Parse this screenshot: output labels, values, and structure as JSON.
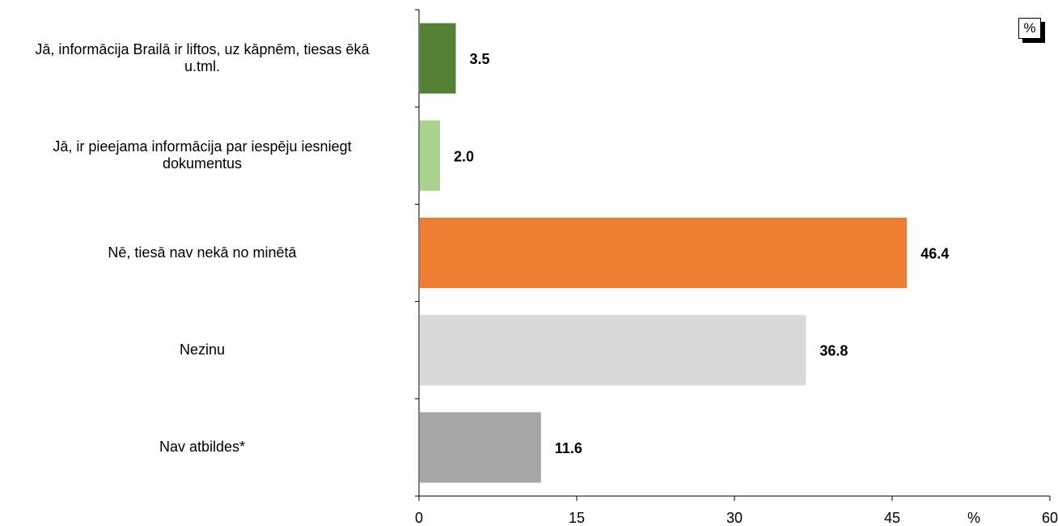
{
  "chart_data": {
    "type": "bar",
    "orientation": "horizontal",
    "categories": [
      "Jā, informācija Brailā ir liftos, uz kāpnēm, tiesas ēkā u.tml.",
      "Jā, ir pieejama informācija par iespēju iesniegt dokumentus",
      "Nē, tiesā nav nekā no minētā",
      "Nezinu",
      "Nav atbildes*"
    ],
    "category_lines": [
      [
        "Jā, informācija Brailā ir liftos, uz kāpnēm, tiesas ēkā",
        "u.tml."
      ],
      [
        "Jā, ir pieejama informācija par iespēju iesniegt",
        "dokumentus"
      ],
      [
        "Nē, tiesā nav nekā no minētā"
      ],
      [
        "Nezinu"
      ],
      [
        "Nav atbildes*"
      ]
    ],
    "values": [
      3.5,
      2.0,
      46.4,
      36.8,
      11.6
    ],
    "value_labels": [
      "3.5",
      "2.0",
      "46.4",
      "36.8",
      "11.6"
    ],
    "colors": [
      "#538135",
      "#a9d18e",
      "#ed7d31",
      "#d9d9d9",
      "#a6a6a6"
    ],
    "xlim": [
      0,
      60
    ],
    "x_ticks": [
      "0",
      "15",
      "30",
      "45",
      "60"
    ],
    "xlabel": "%",
    "unit_badge": "%",
    "grid": false
  }
}
